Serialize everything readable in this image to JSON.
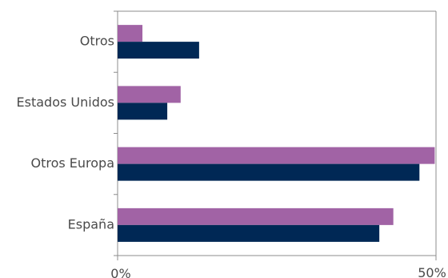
{
  "chart_data": {
    "type": "bar",
    "orientation": "horizontal",
    "title": "",
    "xlabel": "",
    "ylabel": "",
    "categories": [
      "España",
      "Otros Europa",
      "Estados Unidos",
      "Otros"
    ],
    "series": [
      {
        "color": "#a163a5",
        "values": [
          43.3,
          49.8,
          9.9,
          3.9
        ]
      },
      {
        "color": "#002855",
        "values": [
          41.1,
          47.4,
          7.8,
          12.8
        ]
      }
    ],
    "xlim": [
      0,
      50
    ],
    "x_tick_labels": [
      "0%",
      "50%"
    ],
    "grid": false,
    "legend": "none"
  }
}
